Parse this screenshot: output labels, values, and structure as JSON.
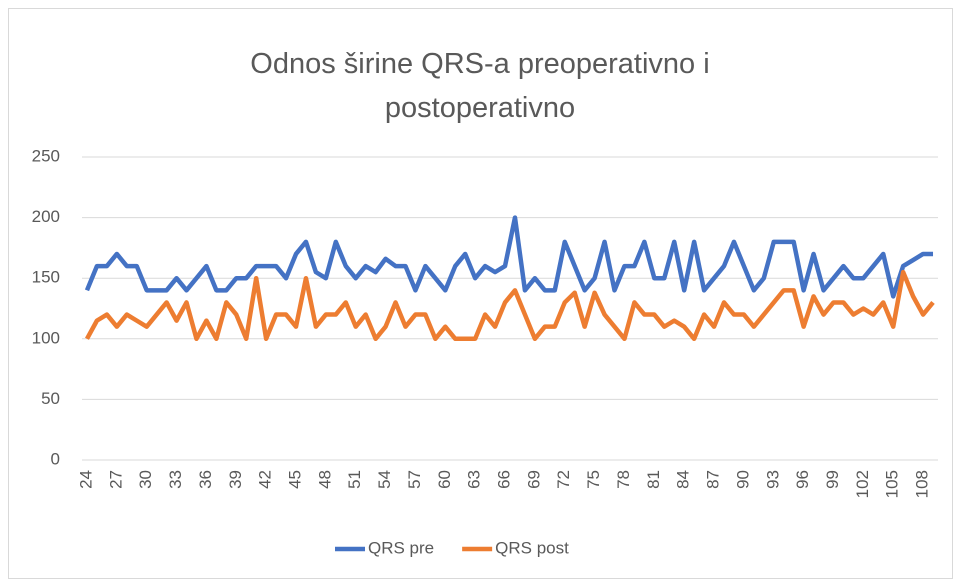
{
  "chart_data": {
    "type": "line",
    "title": "Odnos širine QRS-a preoperativno i postoperativno",
    "categories": [
      "24",
      null,
      null,
      "27",
      null,
      null,
      "30",
      null,
      null,
      "33",
      null,
      null,
      "36",
      null,
      null,
      "39",
      null,
      null,
      "42",
      null,
      null,
      "45",
      null,
      null,
      "48",
      null,
      null,
      "51",
      null,
      null,
      "54",
      null,
      null,
      "57",
      null,
      null,
      "60",
      null,
      null,
      "63",
      null,
      null,
      "66",
      null,
      null,
      "69",
      null,
      null,
      "72",
      null,
      null,
      "75",
      null,
      null,
      "78",
      null,
      null,
      "81",
      null,
      null,
      "84",
      null,
      null,
      "87",
      null,
      null,
      "90",
      null,
      null,
      "93",
      null,
      null,
      "96",
      null,
      null,
      "99",
      null,
      null,
      "102",
      null,
      null,
      "105",
      null,
      null,
      "108",
      null
    ],
    "series": [
      {
        "name": "QRS pre",
        "color": "#4472c4",
        "values": [
          140,
          160,
          160,
          170,
          160,
          160,
          140,
          140,
          140,
          150,
          140,
          150,
          160,
          140,
          140,
          150,
          150,
          160,
          160,
          160,
          150,
          170,
          180,
          155,
          150,
          180,
          160,
          150,
          160,
          155,
          166,
          160,
          160,
          140,
          160,
          150,
          140,
          160,
          170,
          150,
          160,
          155,
          160,
          200,
          140,
          150,
          140,
          140,
          180,
          160,
          140,
          150,
          180,
          140,
          160,
          160,
          180,
          150,
          150,
          180,
          140,
          180,
          140,
          150,
          160,
          180,
          160,
          140,
          150,
          180,
          180,
          180,
          140,
          170,
          140,
          150,
          160,
          150,
          150,
          160,
          170,
          135,
          160,
          165,
          170,
          170
        ]
      },
      {
        "name": "QRS post",
        "color": "#ed7d31",
        "values": [
          100,
          115,
          120,
          110,
          120,
          115,
          110,
          120,
          130,
          115,
          130,
          100,
          115,
          100,
          130,
          120,
          100,
          150,
          100,
          120,
          120,
          110,
          150,
          110,
          120,
          120,
          130,
          110,
          120,
          100,
          110,
          130,
          110,
          120,
          120,
          100,
          110,
          100,
          100,
          100,
          120,
          110,
          130,
          140,
          120,
          100,
          110,
          110,
          130,
          138,
          110,
          138,
          120,
          110,
          100,
          130,
          120,
          120,
          110,
          115,
          110,
          100,
          120,
          110,
          130,
          120,
          120,
          110,
          120,
          130,
          140,
          140,
          110,
          135,
          120,
          130,
          130,
          120,
          125,
          120,
          130,
          110,
          155,
          135,
          120,
          130
        ]
      }
    ],
    "ylim": [
      0,
      250
    ],
    "yticks": [
      0,
      50,
      100,
      150,
      200,
      250
    ],
    "grid": true
  }
}
